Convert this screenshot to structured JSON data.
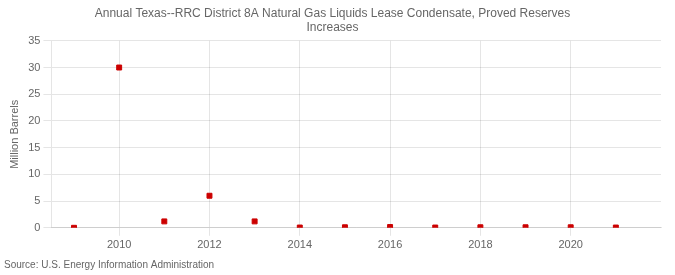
{
  "chart_data": {
    "type": "scatter",
    "title": "Annual Texas--RRC District 8A Natural Gas Liquids Lease Condensate, Proved Reserves\nIncreases",
    "ylabel": "Million Barrels",
    "source": "Source: U.S. Energy Information Administration",
    "x": [
      2009,
      2010,
      2011,
      2012,
      2013,
      2014,
      2015,
      2016,
      2017,
      2018,
      2019,
      2020,
      2021
    ],
    "values": [
      0.0,
      30.0,
      1.2,
      6.0,
      1.2,
      0.05,
      0.1,
      0.15,
      0.05,
      0.1,
      0.1,
      0.1,
      0.05
    ],
    "color": "#cc0000",
    "marker": "square",
    "xlim": [
      2008.5,
      2022.0
    ],
    "xticks": [
      2010,
      2012,
      2014,
      2016,
      2018,
      2020
    ],
    "ylim": [
      0,
      35
    ],
    "yticks": [
      0,
      5,
      10,
      15,
      20,
      25,
      30,
      35
    ],
    "grid": true
  }
}
